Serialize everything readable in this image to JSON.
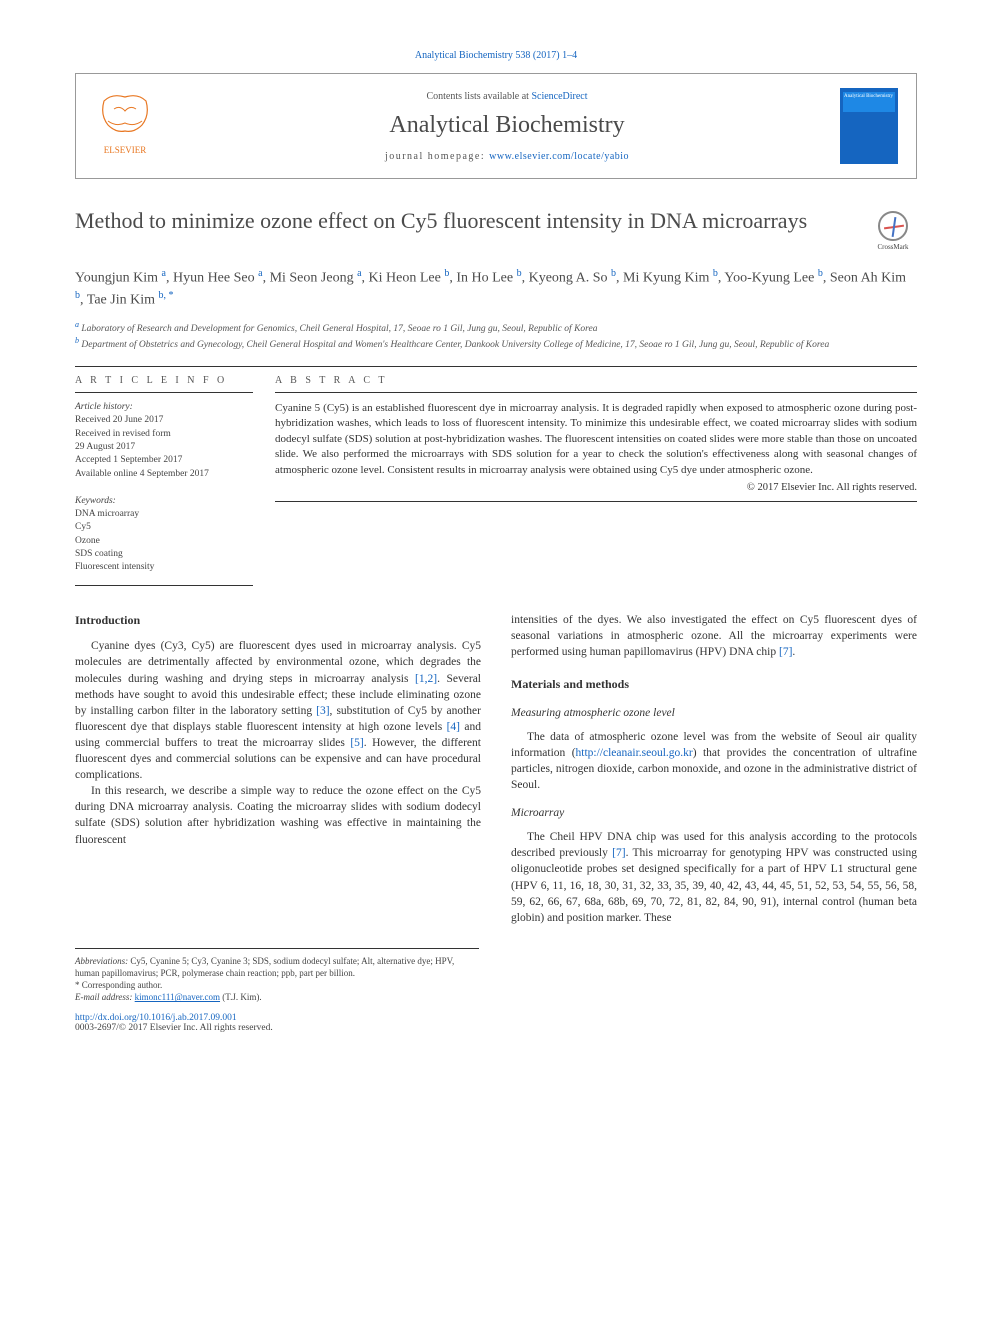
{
  "citation": "Analytical Biochemistry 538 (2017) 1–4",
  "header": {
    "contents_prefix": "Contents lists available at ",
    "contents_link": "ScienceDirect",
    "journal": "Analytical Biochemistry",
    "homepage_prefix": "journal homepage: ",
    "homepage_url": "www.elsevier.com/locate/yabio",
    "cover_label": "Analytical\nBiochemistry"
  },
  "title": "Method to minimize ozone effect on Cy5 fluorescent intensity in DNA microarrays",
  "crossmark": "CrossMark",
  "authors_html": "Youngjun Kim <sup>a</sup>, Hyun Hee Seo <sup>a</sup>, Mi Seon Jeong <sup>a</sup>, Ki Heon Lee <sup>b</sup>, In Ho Lee <sup>b</sup>, Kyeong A. So <sup>b</sup>, Mi Kyung Kim <sup>b</sup>, Yoo-Kyung Lee <sup>b</sup>, Seon Ah Kim <sup>b</sup>, Tae Jin Kim <sup>b, *</sup>",
  "affiliations": {
    "a": "Laboratory of Research and Development for Genomics, Cheil General Hospital, 17, Seoae ro 1 Gil, Jung gu, Seoul, Republic of Korea",
    "b": "Department of Obstetrics and Gynecology, Cheil General Hospital and Women's Healthcare Center, Dankook University College of Medicine, 17, Seoae ro 1 Gil, Jung gu, Seoul, Republic of Korea"
  },
  "info": {
    "heading": "A R T I C L E   I N F O",
    "history_label": "Article history:",
    "history": [
      "Received 20 June 2017",
      "Received in revised form",
      "29 August 2017",
      "Accepted 1 September 2017",
      "Available online 4 September 2017"
    ],
    "kw_label": "Keywords:",
    "keywords": [
      "DNA microarray",
      "Cy5",
      "Ozone",
      "SDS coating",
      "Fluorescent intensity"
    ]
  },
  "abstract": {
    "heading": "A B S T R A C T",
    "text": "Cyanine 5 (Cy5) is an established fluorescent dye in microarray analysis. It is degraded rapidly when exposed to atmospheric ozone during post-hybridization washes, which leads to loss of fluorescent intensity. To minimize this undesirable effect, we coated microarray slides with sodium dodecyl sulfate (SDS) solution at post-hybridization washes. The fluorescent intensities on coated slides were more stable than those on uncoated slide. We also performed the microarrays with SDS solution for a year to check the solution's effectiveness along with seasonal changes of atmospheric ozone level. Consistent results in microarray analysis were obtained using Cy5 dye under atmospheric ozone.",
    "copyright": "© 2017 Elsevier Inc. All rights reserved."
  },
  "body": {
    "intro_h": "Introduction",
    "intro_p1": "Cyanine dyes (Cy3, Cy5) are fluorescent dyes used in microarray analysis. Cy5 molecules are detrimentally affected by environmental ozone, which degrades the molecules during washing and drying steps in microarray analysis [1,2]. Several methods have sought to avoid this undesirable effect; these include eliminating ozone by installing carbon filter in the laboratory setting [3], substitution of Cy5 by another fluorescent dye that displays stable fluorescent intensity at high ozone levels [4] and using commercial buffers to treat the microarray slides [5]. However, the different fluorescent dyes and commercial solutions can be expensive and can have procedural complications.",
    "intro_p2": "In this research, we describe a simple way to reduce the ozone effect on the Cy5 during DNA microarray analysis. Coating the microarray slides with sodium dodecyl sulfate (SDS) solution after hybridization washing was effective in maintaining the fluorescent",
    "col2_p1": "intensities of the dyes. We also investigated the effect on Cy5 fluorescent dyes of seasonal variations in atmospheric ozone. All the microarray experiments were performed using human papillomavirus (HPV) DNA chip [7].",
    "mm_h": "Materials and methods",
    "mm_s1_h": "Measuring atmospheric ozone level",
    "mm_s1_p": "The data of atmospheric ozone level was from the website of Seoul air quality information (http://cleanair.seoul.go.kr) that provides the concentration of ultrafine particles, nitrogen dioxide, carbon monoxide, and ozone in the administrative district of Seoul.",
    "mm_s2_h": "Microarray",
    "mm_s2_p": "The Cheil HPV DNA chip was used for this analysis according to the protocols described previously [7]. This microarray for genotyping HPV was constructed using oligonucleotide probes set designed specifically for a part of HPV L1 structural gene (HPV 6, 11, 16, 18, 30, 31, 32, 33, 35, 39, 40, 42, 43, 44, 45, 51, 52, 53, 54, 55, 56, 58, 59, 62, 66, 67, 68a, 68b, 69, 70, 72, 81, 82, 84, 90, 91), internal control (human beta globin) and position marker. These"
  },
  "footnotes": {
    "abbr_label": "Abbreviations:",
    "abbr": " Cy5, Cyanine 5; Cy3, Cyanine 3; SDS, sodium dodecyl sulfate; Alt, alternative dye; HPV, human papillomavirus; PCR, polymerase chain reaction; ppb, part per billion.",
    "corr": "* Corresponding author.",
    "email_label": "E-mail address: ",
    "email": "kimonc111@naver.com",
    "email_suffix": " (T.J. Kim)."
  },
  "doi": "http://dx.doi.org/10.1016/j.ab.2017.09.001",
  "copyright_footer": "0003-2697/© 2017 Elsevier Inc. All rights reserved.",
  "colors": {
    "link": "#1565c0",
    "text": "#333333",
    "muted": "#555555",
    "rule": "#333333"
  }
}
